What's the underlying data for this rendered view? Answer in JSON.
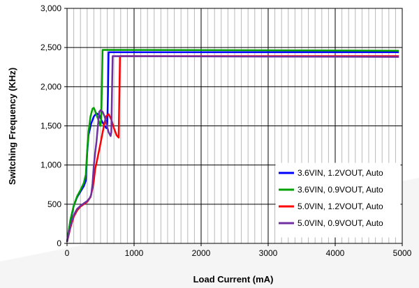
{
  "chart_data": {
    "type": "line",
    "title": "",
    "xlabel": "Load Current (mA)",
    "ylabel": "Switching Frequency (KHz)",
    "xlim": [
      0,
      5000
    ],
    "ylim": [
      0,
      3000
    ],
    "x_ticks": [
      0,
      1000,
      2000,
      3000,
      4000,
      5000
    ],
    "x_tick_labels": [
      "0",
      "1000",
      "2000",
      "3000",
      "4000",
      "5000"
    ],
    "y_ticks": [
      0,
      500,
      1000,
      1500,
      2000,
      2500,
      3000
    ],
    "y_tick_labels": [
      "0",
      "500",
      "1,000",
      "1,500",
      "2,000",
      "2,500",
      "3,000"
    ],
    "grid": true,
    "legend_position": "bottom-right",
    "series": [
      {
        "name": "3.6VIN, 1.2VOUT, Auto",
        "color": "#0000ff",
        "x": [
          0,
          50,
          100,
          150,
          200,
          250,
          280,
          300,
          320,
          360,
          400,
          440,
          480,
          520,
          560,
          590,
          600,
          610,
          620,
          4950
        ],
        "y": [
          20,
          280,
          480,
          590,
          660,
          730,
          800,
          1150,
          1380,
          1530,
          1620,
          1660,
          1640,
          1560,
          1500,
          1470,
          1520,
          1900,
          2440,
          2440
        ]
      },
      {
        "name": "3.6VIN, 0.9VOUT, Auto",
        "color": "#00a000",
        "x": [
          0,
          50,
          100,
          150,
          200,
          250,
          280,
          300,
          320,
          350,
          380,
          400,
          420,
          460,
          500,
          510,
          520,
          530,
          4950
        ],
        "y": [
          20,
          300,
          480,
          600,
          680,
          770,
          880,
          1180,
          1420,
          1620,
          1720,
          1730,
          1690,
          1590,
          1500,
          1600,
          2000,
          2470,
          2460
        ]
      },
      {
        "name": "5.0VIN, 1.2VOUT, Auto",
        "color": "#ff0000",
        "x": [
          0,
          50,
          100,
          150,
          200,
          250,
          300,
          350,
          380,
          400,
          420,
          450,
          500,
          550,
          580,
          620,
          660,
          700,
          740,
          770,
          790,
          4950
        ],
        "y": [
          20,
          200,
          340,
          420,
          470,
          500,
          530,
          590,
          700,
          800,
          950,
          1070,
          1280,
          1500,
          1620,
          1650,
          1580,
          1470,
          1380,
          1350,
          2390,
          2390
        ]
      },
      {
        "name": "5.0VIN, 0.9VOUT, Auto",
        "color": "#7030a0",
        "x": [
          0,
          50,
          100,
          150,
          200,
          250,
          300,
          340,
          360,
          380,
          400,
          420,
          440,
          460,
          480,
          500,
          530,
          560,
          590,
          620,
          650,
          660,
          670,
          680,
          4950
        ],
        "y": [
          20,
          220,
          360,
          440,
          480,
          510,
          540,
          580,
          620,
          760,
          1000,
          1160,
          1300,
          1500,
          1680,
          1700,
          1680,
          1620,
          1520,
          1420,
          1370,
          1420,
          1900,
          2390,
          2380
        ]
      }
    ]
  }
}
